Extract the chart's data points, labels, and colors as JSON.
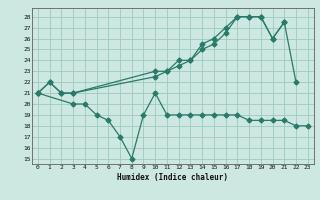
{
  "xlabel": "Humidex (Indice chaleur)",
  "bg_color": "#cce8e0",
  "grid_color": "#9dc8c0",
  "line_color": "#2a7a6a",
  "xlim": [
    -0.5,
    23.5
  ],
  "ylim": [
    14.5,
    28.8
  ],
  "xticks": [
    0,
    1,
    2,
    3,
    4,
    5,
    6,
    7,
    8,
    9,
    10,
    11,
    12,
    13,
    14,
    15,
    16,
    17,
    18,
    19,
    20,
    21,
    22,
    23
  ],
  "yticks": [
    15,
    16,
    17,
    18,
    19,
    20,
    21,
    22,
    23,
    24,
    25,
    26,
    27,
    28
  ],
  "line1_x": [
    0,
    1,
    2,
    3,
    10,
    11,
    12,
    13,
    14,
    15,
    16,
    17,
    18,
    19,
    20,
    21,
    22
  ],
  "line1_y": [
    21,
    22,
    21,
    21,
    23,
    23,
    24,
    24,
    25.5,
    26,
    27,
    28,
    28,
    28,
    26,
    27.5,
    22
  ],
  "line2_x": [
    0,
    1,
    2,
    3,
    10,
    11,
    12,
    13,
    14,
    15,
    16,
    17,
    18,
    19,
    20,
    21
  ],
  "line2_y": [
    21,
    22,
    21,
    21,
    22.5,
    23,
    23.5,
    24,
    25,
    25.5,
    26.5,
    28,
    28,
    28,
    26,
    27.5
  ],
  "line3_x": [
    0,
    3,
    4,
    5,
    6,
    7,
    8,
    9,
    10,
    11,
    12,
    13,
    14,
    15,
    16,
    17,
    18,
    19,
    20,
    21,
    22,
    23
  ],
  "line3_y": [
    21,
    20,
    20,
    19,
    18.5,
    17,
    15,
    19,
    21,
    19,
    19,
    19,
    19,
    19,
    19,
    19,
    18.5,
    18.5,
    18.5,
    18.5,
    18,
    18
  ]
}
